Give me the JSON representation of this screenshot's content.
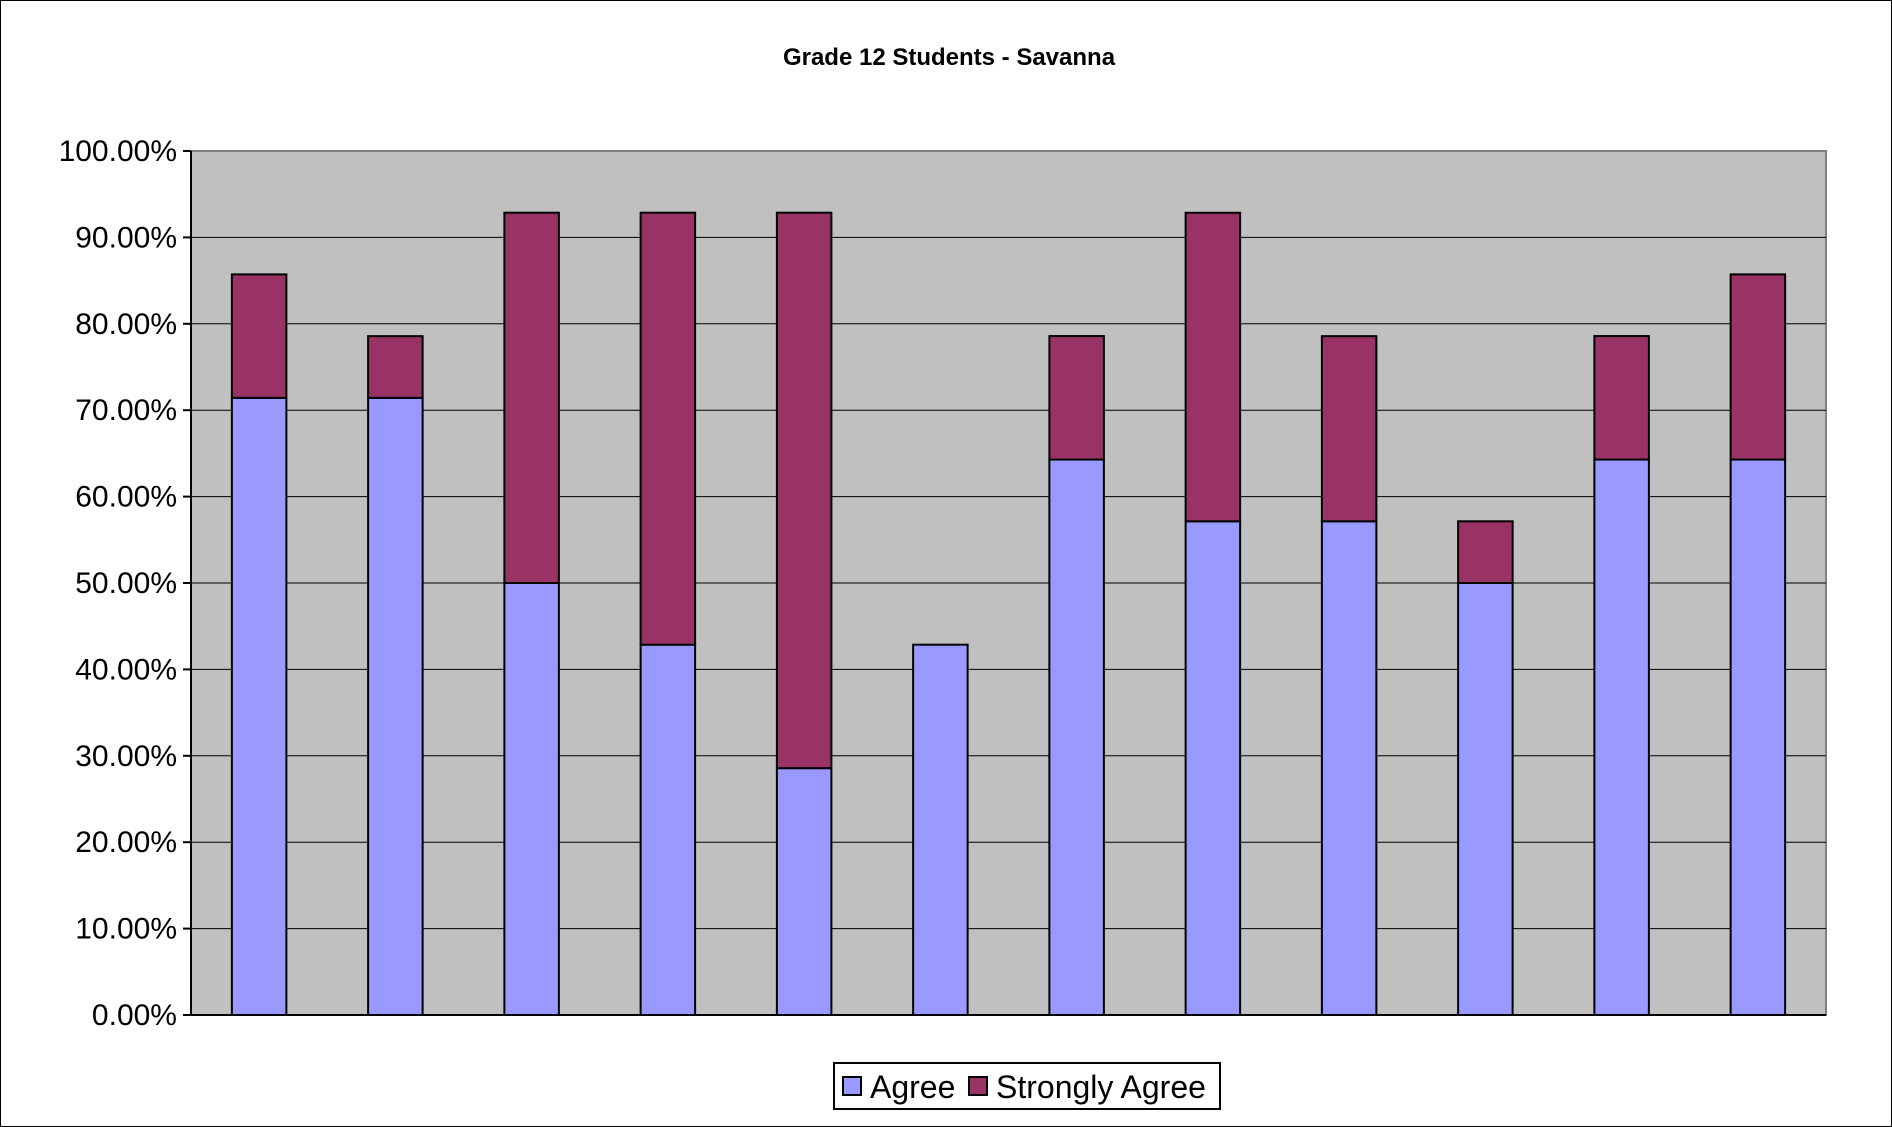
{
  "chart_data": {
    "type": "bar",
    "stacked": true,
    "title": "Grade 12 Students - Savanna",
    "xlabel": "",
    "ylabel": "",
    "ylim": [
      0,
      1
    ],
    "yticks": [
      "0.00%",
      "10.00%",
      "20.00%",
      "30.00%",
      "40.00%",
      "50.00%",
      "60.00%",
      "70.00%",
      "80.00%",
      "90.00%",
      "100.00%"
    ],
    "categories": [
      "",
      "",
      "",
      "",
      "",
      "",
      "",
      "",
      "",
      "",
      "",
      ""
    ],
    "series": [
      {
        "name": "Agree",
        "color": "#9999ff",
        "values": [
          0.7143,
          0.7143,
          0.5,
          0.4286,
          0.2857,
          0.4286,
          0.6429,
          0.5714,
          0.5714,
          0.5,
          0.6429,
          0.6429
        ]
      },
      {
        "name": "Strongly Agree",
        "color": "#993366",
        "values": [
          0.1429,
          0.0714,
          0.4286,
          0.5,
          0.6429,
          0,
          0.1429,
          0.3571,
          0.2143,
          0.0714,
          0.1429,
          0.2143
        ]
      }
    ],
    "plot_background": "#c0c0c0",
    "grid": true,
    "legend_position": "bottom"
  }
}
